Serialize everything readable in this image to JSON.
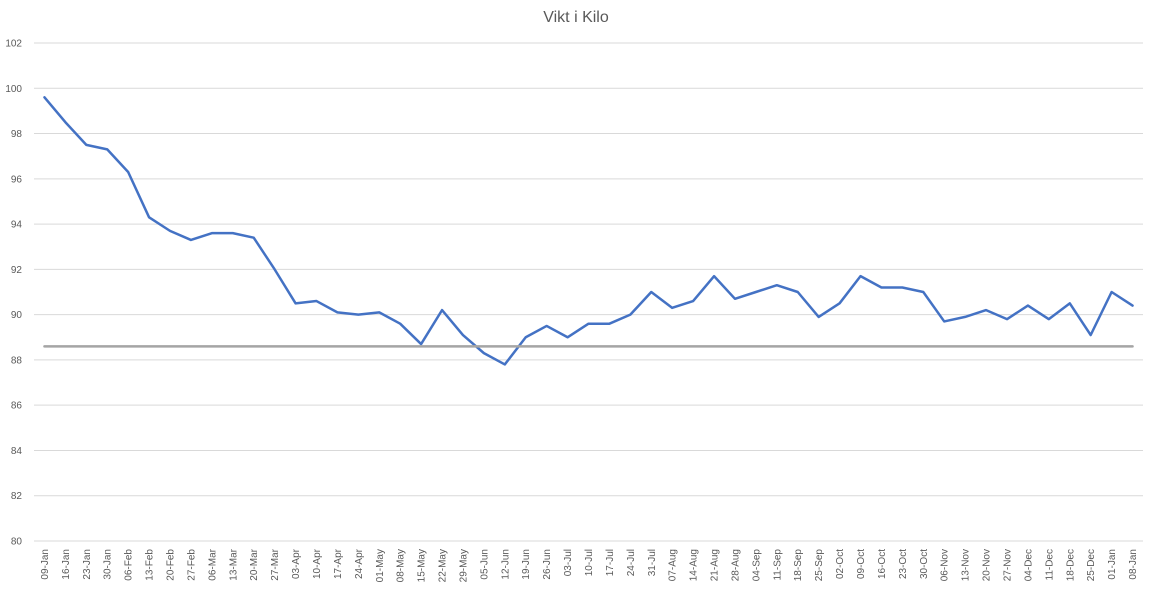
{
  "chart_data": {
    "type": "line",
    "title": "Vikt i Kilo",
    "xlabel": "",
    "ylabel": "",
    "ylim": [
      80,
      102
    ],
    "yticks": [
      80,
      82,
      84,
      86,
      88,
      90,
      92,
      94,
      96,
      98,
      100,
      102
    ],
    "grid": true,
    "legend": "none",
    "categories": [
      "09-Jan",
      "16-Jan",
      "23-Jan",
      "30-Jan",
      "06-Feb",
      "13-Feb",
      "20-Feb",
      "27-Feb",
      "06-Mar",
      "13-Mar",
      "20-Mar",
      "27-Mar",
      "03-Apr",
      "10-Apr",
      "17-Apr",
      "24-Apr",
      "01-May",
      "08-May",
      "15-May",
      "22-May",
      "29-May",
      "05-Jun",
      "12-Jun",
      "19-Jun",
      "26-Jun",
      "03-Jul",
      "10-Jul",
      "17-Jul",
      "24-Jul",
      "31-Jul",
      "07-Aug",
      "14-Aug",
      "21-Aug",
      "28-Aug",
      "04-Sep",
      "11-Sep",
      "18-Sep",
      "25-Sep",
      "02-Oct",
      "09-Oct",
      "16-Oct",
      "23-Oct",
      "30-Oct",
      "06-Nov",
      "13-Nov",
      "20-Nov",
      "27-Nov",
      "04-Dec",
      "11-Dec",
      "18-Dec",
      "25-Dec",
      "01-Jan",
      "08-Jan"
    ],
    "series": [
      {
        "color": "#4472c4",
        "values": [
          99.6,
          98.5,
          97.5,
          97.3,
          96.3,
          94.3,
          93.7,
          93.3,
          93.6,
          93.6,
          93.4,
          92.0,
          90.5,
          90.6,
          90.1,
          90.0,
          90.1,
          89.6,
          88.7,
          90.2,
          89.1,
          88.3,
          87.8,
          89.0,
          89.5,
          89.0,
          89.6,
          89.6,
          90.0,
          91.0,
          90.3,
          90.6,
          91.7,
          90.7,
          91.0,
          91.3,
          91.0,
          89.9,
          90.5,
          91.7,
          91.2,
          91.2,
          91.0,
          89.7,
          89.9,
          90.2,
          89.8,
          90.4,
          89.8,
          90.5,
          89.1,
          91.0,
          90.4
        ]
      },
      {
        "color": "#a5a5a5",
        "values": [
          88.6,
          88.6,
          88.6,
          88.6,
          88.6,
          88.6,
          88.6,
          88.6,
          88.6,
          88.6,
          88.6,
          88.6,
          88.6,
          88.6,
          88.6,
          88.6,
          88.6,
          88.6,
          88.6,
          88.6,
          88.6,
          88.6,
          88.6,
          88.6,
          88.6,
          88.6,
          88.6,
          88.6,
          88.6,
          88.6,
          88.6,
          88.6,
          88.6,
          88.6,
          88.6,
          88.6,
          88.6,
          88.6,
          88.6,
          88.6,
          88.6,
          88.6,
          88.6,
          88.6,
          88.6,
          88.6,
          88.6,
          88.6,
          88.6,
          88.6,
          88.6,
          88.6,
          88.6
        ]
      }
    ]
  }
}
